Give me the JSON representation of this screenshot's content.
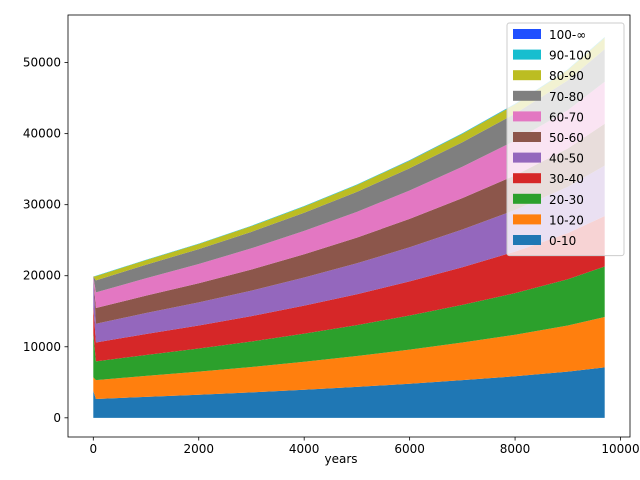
{
  "chart_data": {
    "type": "area",
    "stacked": true,
    "title": "",
    "xlabel": "years",
    "ylabel": "",
    "xlim": [
      -480,
      10180
    ],
    "ylim": [
      -2700,
      56700
    ],
    "x_ticks": [
      0,
      2000,
      4000,
      6000,
      8000,
      10000
    ],
    "x_tick_labels": [
      "0",
      "2000",
      "4000",
      "6000",
      "8000",
      "10000"
    ],
    "y_ticks": [
      0,
      10000,
      20000,
      30000,
      40000,
      50000
    ],
    "y_tick_labels": [
      "0",
      "10000",
      "20000",
      "30000",
      "40000",
      "50000"
    ],
    "grid": false,
    "legend_position": "top-right",
    "x": [
      0,
      50,
      1000,
      2000,
      3000,
      4000,
      5000,
      6000,
      7000,
      8000,
      9000,
      9700
    ],
    "series": [
      {
        "name": "0-10",
        "color": "#1f77b4",
        "values": [
          3800,
          2650,
          2950,
          3250,
          3580,
          3950,
          4350,
          4800,
          5300,
          5850,
          6500,
          7100
        ]
      },
      {
        "name": "10-20",
        "color": "#ff7f0e",
        "values": [
          1900,
          2650,
          2950,
          3250,
          3580,
          3950,
          4350,
          4800,
          5300,
          5850,
          6500,
          7100
        ]
      },
      {
        "name": "20-30",
        "color": "#2ca02c",
        "values": [
          6200,
          2650,
          2950,
          3250,
          3580,
          3950,
          4350,
          4800,
          5300,
          5850,
          6500,
          7100
        ]
      },
      {
        "name": "30-40",
        "color": "#d62728",
        "values": [
          3800,
          2650,
          2950,
          3250,
          3580,
          3950,
          4350,
          4800,
          5300,
          5850,
          6500,
          7100
        ]
      },
      {
        "name": "40-50",
        "color": "#9467bd",
        "values": [
          4200,
          2650,
          2950,
          3250,
          3580,
          3950,
          4350,
          4800,
          5300,
          5850,
          6500,
          7100
        ]
      },
      {
        "name": "50-60",
        "color": "#8c564b",
        "values": [
          0,
          2200,
          2450,
          2700,
          2980,
          3280,
          3620,
          4000,
          4420,
          4880,
          5400,
          5900
        ]
      },
      {
        "name": "60-70",
        "color": "#e377c2",
        "values": [
          0,
          2200,
          2450,
          2700,
          2980,
          3280,
          3620,
          4000,
          4420,
          4880,
          5400,
          5900
        ]
      },
      {
        "name": "70-80",
        "color": "#7f7f7f",
        "values": [
          0,
          1700,
          1900,
          2100,
          2320,
          2560,
          2820,
          3120,
          3450,
          3800,
          4200,
          4600
        ]
      },
      {
        "name": "80-90",
        "color": "#bcbd22",
        "values": [
          0,
          600,
          650,
          720,
          800,
          880,
          970,
          1070,
          1180,
          1300,
          1450,
          1600
        ]
      },
      {
        "name": "90-100",
        "color": "#17becf",
        "values": [
          0,
          40,
          45,
          50,
          55,
          60,
          66,
          73,
          80,
          88,
          97,
          105
        ]
      },
      {
        "name": "100-∞",
        "color": "#1f4fff",
        "values": [
          0,
          3,
          3,
          3,
          4,
          4,
          4,
          5,
          5,
          6,
          6,
          7
        ]
      }
    ]
  }
}
